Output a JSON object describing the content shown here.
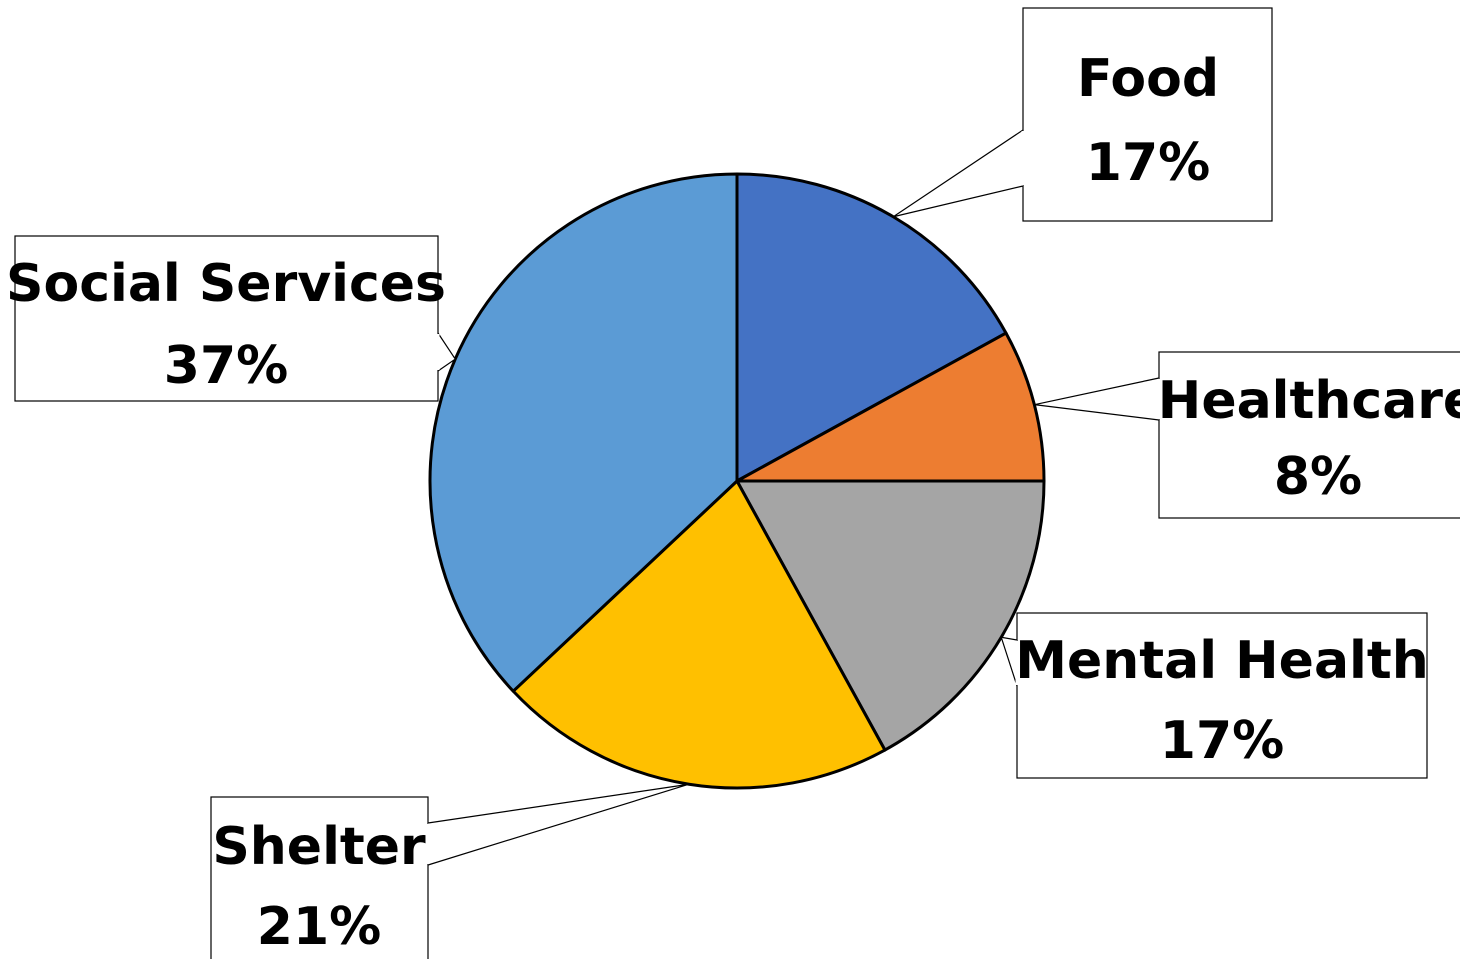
{
  "chart_data": {
    "type": "pie",
    "title": "",
    "series": [
      {
        "values": [
          17,
          8,
          17,
          21,
          37
        ]
      }
    ],
    "categories": [
      "Food",
      "Healthcare",
      "Mental Health",
      "Shelter",
      "Social Services"
    ],
    "slices": [
      {
        "label": "Food",
        "value": 17,
        "value_label": "17%",
        "color": "#4472C4"
      },
      {
        "label": "Healthcare",
        "value": 8,
        "value_label": "8%",
        "color": "#ED7D31"
      },
      {
        "label": "Mental Health",
        "value": 17,
        "value_label": "17%",
        "color": "#A5A5A5"
      },
      {
        "label": "Shelter",
        "value": 21,
        "value_label": "21%",
        "color": "#FFC000"
      },
      {
        "label": "Social Services",
        "value": 37,
        "value_label": "37%",
        "color": "#5B9BD5"
      }
    ],
    "data_labels": "callouts",
    "legend": "none",
    "start_angle_deg": 0,
    "direction": "clockwise"
  }
}
